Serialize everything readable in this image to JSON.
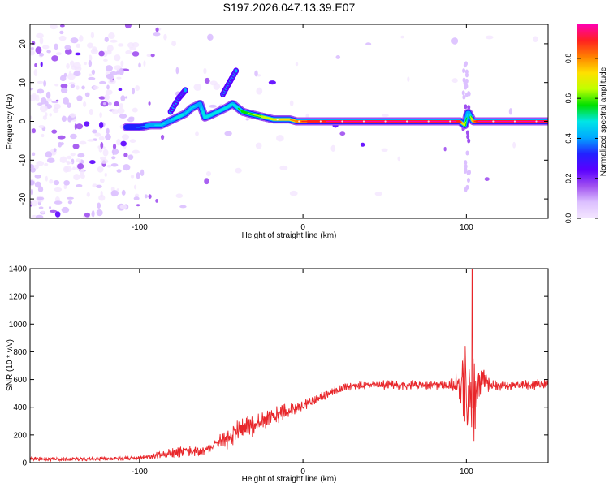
{
  "figure_title": "S197.2026.047.13.39.E07",
  "colors": {
    "signal_line": "#e8262a",
    "ridge": "#ffffff",
    "frame": "#000000",
    "colormap": [
      "#f4e6ff",
      "#dcc0ff",
      "#a050f0",
      "#5a00ff",
      "#2222ff",
      "#00aaff",
      "#00e6e6",
      "#00e000",
      "#c0ff00",
      "#ffe000",
      "#ff8000",
      "#ff2020",
      "#ff00b0"
    ]
  },
  "chart_data": [
    {
      "type": "heatmap",
      "title": "S197.2026.047.13.39.E07",
      "xlabel": "Height of straight line (km)",
      "ylabel": "Frequency (Hz)",
      "xlim": [
        -167,
        150
      ],
      "ylim": [
        -25,
        25
      ],
      "x_ticks": [
        -100,
        0,
        100
      ],
      "x_tick_labels": [
        "-100",
        "0",
        "100"
      ],
      "y_ticks": [
        -20,
        -10,
        0,
        10,
        20
      ],
      "y_tick_labels": [
        "-20",
        "-10",
        "0",
        "10",
        "20"
      ],
      "colorbar": {
        "label": "Normalized spectral amplitude",
        "range": [
          0,
          0.97
        ],
        "ticks": [
          0,
          0.2,
          0.4,
          0.6,
          0.8
        ],
        "tick_labels": [
          "0.0",
          "0.2",
          "0.4",
          "0.6",
          "0.8"
        ]
      },
      "ridge_path": {
        "x": [
          -108,
          -100,
          -93,
          -87,
          -82,
          -77,
          -72,
          -68,
          -63,
          -60,
          -57,
          -52,
          -47,
          -43,
          -40,
          -37,
          -33,
          -28,
          -23,
          -18,
          -13,
          -8,
          -4,
          0,
          5,
          15,
          30,
          50,
          70,
          90,
          96,
          99,
          101,
          104,
          108,
          120,
          135,
          150
        ],
        "frequency_hz": [
          -1.5,
          -1.5,
          -1,
          -1,
          0,
          1,
          2,
          3.5,
          4.5,
          1,
          1.5,
          2.5,
          3.5,
          4.5,
          3.5,
          2.5,
          2,
          1.5,
          1,
          0.5,
          0.5,
          0.5,
          0,
          0,
          0,
          0,
          0,
          0,
          0,
          0,
          0,
          -1,
          2.5,
          0,
          0,
          0,
          0,
          0
        ],
        "amplitude": [
          0.3,
          0.35,
          0.4,
          0.45,
          0.4,
          0.5,
          0.45,
          0.45,
          0.4,
          0.5,
          0.5,
          0.5,
          0.5,
          0.45,
          0.5,
          0.55,
          0.6,
          0.6,
          0.65,
          0.7,
          0.75,
          0.75,
          0.8,
          0.85,
          0.9,
          0.92,
          0.95,
          0.95,
          0.95,
          0.95,
          0.9,
          0.6,
          0.35,
          0.8,
          0.95,
          0.95,
          0.95,
          0.95
        ]
      },
      "side_features": [
        {
          "x": [
            -81,
            -76,
            -72
          ],
          "frequency_hz": [
            2.5,
            6,
            8
          ]
        },
        {
          "x": [
            -49,
            -45,
            -41
          ],
          "frequency_hz": [
            7,
            10,
            13
          ]
        }
      ],
      "noise_region_x": [
        -167,
        -95
      ],
      "noise_density_by_x": {
        "x": [
          -167,
          -140,
          -120,
          -105,
          -95,
          -80,
          -60,
          -45
        ],
        "density": [
          1.0,
          0.95,
          0.85,
          0.55,
          0.25,
          0.12,
          0.08,
          0.04
        ]
      },
      "spike_at_x": 100,
      "spike_frequency_range_hz": [
        -20,
        17
      ]
    },
    {
      "type": "line",
      "xlabel": "Height of straight line (km)",
      "ylabel": "SNR (10 * v/v)",
      "xlim": [
        -167,
        150
      ],
      "ylim": [
        0,
        1400
      ],
      "x_ticks": [
        -100,
        0,
        100
      ],
      "x_tick_labels": [
        "-100",
        "0",
        "100"
      ],
      "y_ticks": [
        0,
        200,
        400,
        600,
        800,
        1000,
        1200,
        1400
      ],
      "y_tick_labels": [
        "0",
        "200",
        "400",
        "600",
        "800",
        "1000",
        "1200",
        "1400"
      ],
      "series": [
        {
          "name": "SNR",
          "x_envelope": [
            -167,
            -150,
            -130,
            -110,
            -100,
            -90,
            -80,
            -70,
            -60,
            -50,
            -45,
            -40,
            -35,
            -30,
            -25,
            -20,
            -15,
            -10,
            -5,
            0,
            5,
            10,
            15,
            20,
            25,
            30,
            40,
            50,
            60,
            70,
            80,
            90,
            95,
            98,
            100,
            102,
            104,
            106,
            108,
            110,
            112,
            115,
            120,
            130,
            140,
            150
          ],
          "baseline": [
            30,
            25,
            25,
            30,
            35,
            50,
            70,
            90,
            80,
            160,
            180,
            230,
            250,
            270,
            300,
            330,
            350,
            370,
            390,
            410,
            440,
            470,
            500,
            520,
            540,
            550,
            560,
            560,
            560,
            560,
            560,
            560,
            570,
            560,
            520,
            450,
            420,
            500,
            580,
            600,
            580,
            560,
            550,
            560,
            560,
            565
          ],
          "noise_amplitude": [
            25,
            25,
            20,
            20,
            25,
            35,
            55,
            70,
            45,
            90,
            120,
            130,
            130,
            110,
            100,
            90,
            90,
            80,
            70,
            60,
            50,
            50,
            50,
            45,
            45,
            45,
            45,
            50,
            50,
            50,
            50,
            50,
            120,
            300,
            500,
            700,
            500,
            300,
            200,
            150,
            100,
            70,
            50,
            50,
            55,
            60
          ],
          "peak_value": 1400
        }
      ]
    }
  ]
}
